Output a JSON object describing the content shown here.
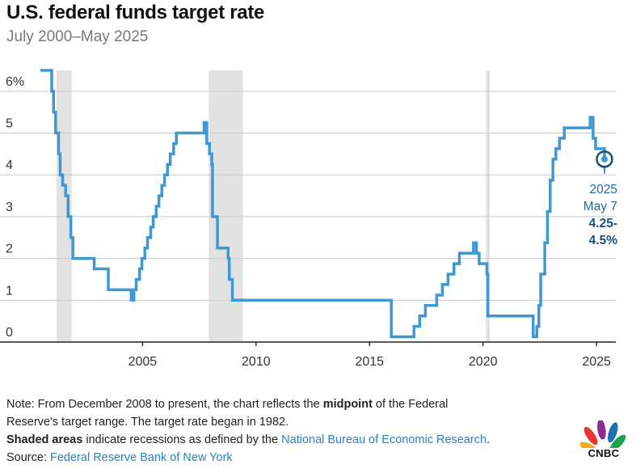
{
  "chart_data": {
    "type": "line",
    "step": true,
    "title": "U.S. federal funds target rate",
    "subtitle": "July 2000–May 2025",
    "xlabel": "",
    "ylabel": "",
    "xlim": [
      2000.5,
      2025.85
    ],
    "ylim": [
      0,
      6.5
    ],
    "x_ticks": [
      2005,
      2010,
      2015,
      2020,
      2025
    ],
    "x_tick_labels": [
      "2005",
      "2010",
      "2015",
      "2020",
      "2025"
    ],
    "y_ticks": [
      0,
      1,
      2,
      3,
      4,
      5,
      6
    ],
    "y_tick_labels": [
      "0",
      "1",
      "2",
      "3",
      "4",
      "5",
      "6%"
    ],
    "grid": true,
    "recessions": [
      [
        2001.21,
        2001.88
      ],
      [
        2007.92,
        2009.42
      ],
      [
        2020.13,
        2020.3
      ]
    ],
    "series": [
      {
        "color": "#3d98d3",
        "x": [
          2000.5,
          2001.0,
          2001.08,
          2001.17,
          2001.3,
          2001.37,
          2001.48,
          2001.61,
          2001.72,
          2001.84,
          2001.93,
          2002.87,
          2003.49,
          2004.5,
          2004.62,
          2004.72,
          2004.87,
          2004.97,
          2005.1,
          2005.22,
          2005.36,
          2005.47,
          2005.6,
          2005.72,
          2005.85,
          2005.97,
          2006.1,
          2006.22,
          2006.37,
          2006.49,
          2007.71,
          2007.83,
          2007.95,
          2008.05,
          2008.08,
          2008.3,
          2008.77,
          2008.82,
          2008.96,
          2015.96,
          2016.96,
          2017.21,
          2017.46,
          2017.96,
          2018.21,
          2018.46,
          2018.72,
          2018.96,
          2019.58,
          2019.71,
          2019.83,
          2020.17,
          2020.21,
          2022.21,
          2022.37,
          2022.46,
          2022.54,
          2022.72,
          2022.84,
          2022.96,
          2023.08,
          2023.21,
          2023.37,
          2023.58,
          2024.72,
          2024.85,
          2024.96,
          2025.35
        ],
        "y": [
          6.5,
          6.0,
          5.5,
          5.0,
          4.5,
          4.0,
          3.75,
          3.5,
          3.0,
          2.5,
          2.0,
          1.75,
          1.25,
          1.0,
          1.25,
          1.5,
          1.75,
          2.0,
          2.25,
          2.5,
          2.75,
          3.0,
          3.25,
          3.5,
          3.75,
          4.0,
          4.25,
          4.5,
          4.75,
          5.0,
          5.25,
          4.75,
          4.5,
          4.25,
          3.0,
          2.25,
          2.0,
          1.5,
          1.0,
          0.125,
          0.375,
          0.625,
          0.875,
          1.125,
          1.375,
          1.625,
          1.875,
          2.125,
          2.375,
          2.125,
          1.875,
          1.625,
          0.625,
          0.125,
          0.375,
          0.875,
          1.625,
          2.375,
          3.125,
          3.875,
          4.375,
          4.625,
          4.875,
          5.125,
          5.375,
          4.875,
          4.625,
          4.375
        ]
      }
    ],
    "annotation": {
      "x": 2025.35,
      "y": 4.375,
      "year": "2025",
      "date": "May 7",
      "value_line1": "4.25-",
      "value_line2": "4.5%"
    }
  },
  "notes": {
    "line1_pre": "Note: From December 2008 to present, the chart reflects the ",
    "line1_bold": "midpoint",
    "line1_post": " of the Federal",
    "line2": "Reserve's target range. The target rate began in 1982.",
    "line3_bold": "Shaded areas",
    "line3_mid": " indicate recessions as defined by the ",
    "line3_link": "National Bureau of Economic Research",
    "line3_end": ".",
    "source_label": "Source: ",
    "source_link": "Federal Reserve Bank of New York"
  },
  "logo": {
    "text": "CNBC",
    "icon": "cnbc-peacock-icon"
  }
}
